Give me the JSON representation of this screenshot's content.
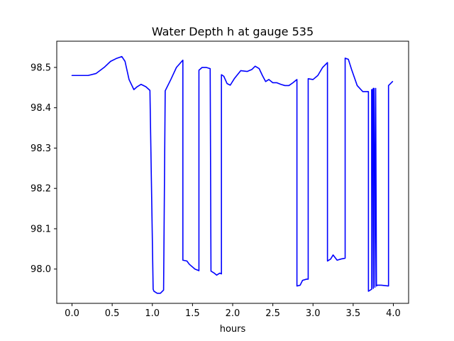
{
  "chart_data": {
    "type": "line",
    "title": "Water Depth h at gauge 535",
    "xlabel": "hours",
    "ylabel": "",
    "xlim": [
      -0.19,
      4.19
    ],
    "ylim": [
      97.915,
      98.565
    ],
    "xticks": [
      0.0,
      0.5,
      1.0,
      1.5,
      2.0,
      2.5,
      3.0,
      3.5,
      4.0
    ],
    "xtick_labels": [
      "0.0",
      "0.5",
      "1.0",
      "1.5",
      "2.0",
      "2.5",
      "3.0",
      "3.5",
      "4.0"
    ],
    "yticks": [
      98.0,
      98.1,
      98.2,
      98.3,
      98.4,
      98.5
    ],
    "ytick_labels": [
      "98.0",
      "98.1",
      "98.2",
      "98.3",
      "98.4",
      "98.5"
    ],
    "grid": false,
    "legend": "none",
    "series": [
      {
        "color": "#0000ff",
        "x": [
          0.0,
          0.2,
          0.3,
          0.4,
          0.48,
          0.55,
          0.62,
          0.66,
          0.71,
          0.77,
          0.81,
          0.86,
          0.92,
          0.97,
          1.01,
          1.02,
          1.06,
          1.1,
          1.14,
          1.16,
          1.16,
          1.23,
          1.3,
          1.38,
          1.38,
          1.43,
          1.46,
          1.53,
          1.58,
          1.58,
          1.62,
          1.67,
          1.72,
          1.73,
          1.77,
          1.8,
          1.84,
          1.86,
          1.86,
          1.89,
          1.93,
          1.97,
          2.02,
          2.1,
          2.18,
          2.24,
          2.28,
          2.33,
          2.37,
          2.41,
          2.45,
          2.5,
          2.55,
          2.6,
          2.65,
          2.7,
          2.75,
          2.8,
          2.8,
          2.84,
          2.87,
          2.92,
          2.94,
          2.94,
          3.0,
          3.06,
          3.12,
          3.18,
          3.18,
          3.22,
          3.25,
          3.3,
          3.35,
          3.4,
          3.4,
          3.44,
          3.48,
          3.55,
          3.62,
          3.67,
          3.69,
          3.69,
          3.73,
          3.73,
          3.74,
          3.75,
          3.75,
          3.76,
          3.77,
          3.78,
          3.79,
          3.8,
          3.85,
          3.94,
          3.94,
          3.99
        ],
        "y": [
          98.48,
          98.48,
          98.485,
          98.5,
          98.515,
          98.522,
          98.527,
          98.515,
          98.47,
          98.445,
          98.452,
          98.458,
          98.452,
          98.443,
          97.95,
          97.945,
          97.94,
          97.94,
          97.948,
          98.442,
          98.442,
          98.47,
          98.5,
          98.518,
          98.022,
          98.02,
          98.012,
          98.0,
          97.996,
          98.493,
          98.5,
          98.5,
          98.497,
          97.995,
          97.99,
          97.985,
          97.99,
          97.988,
          98.482,
          98.478,
          98.46,
          98.456,
          98.472,
          98.492,
          98.49,
          98.495,
          98.503,
          98.497,
          98.48,
          98.465,
          98.47,
          98.462,
          98.462,
          98.458,
          98.455,
          98.455,
          98.462,
          98.47,
          97.958,
          97.96,
          97.972,
          97.975,
          97.975,
          98.472,
          98.47,
          98.48,
          98.5,
          98.512,
          98.02,
          98.025,
          98.035,
          98.022,
          98.025,
          98.027,
          98.523,
          98.52,
          98.495,
          98.455,
          98.44,
          98.44,
          98.44,
          97.945,
          97.95,
          98.445,
          98.445,
          97.952,
          98.448,
          98.448,
          97.955,
          98.448,
          97.958,
          97.96,
          97.96,
          97.958,
          98.455,
          98.465
        ]
      }
    ]
  }
}
